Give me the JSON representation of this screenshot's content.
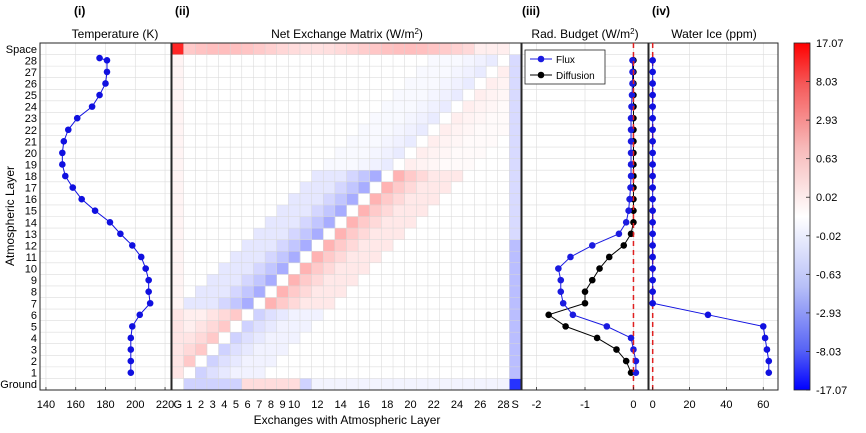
{
  "figure": {
    "ylabel": "Atmospheric Layer",
    "xlabel_matrix": "Exchanges with Atmospheric Layer",
    "layer_labels": [
      "Ground",
      "1",
      "2",
      "3",
      "4",
      "5",
      "6",
      "7",
      "8",
      "9",
      "10",
      "11",
      "12",
      "13",
      "14",
      "15",
      "16",
      "17",
      "18",
      "19",
      "20",
      "21",
      "22",
      "23",
      "24",
      "25",
      "26",
      "27",
      "28",
      "Space"
    ],
    "accent_colors": {
      "series": "#1010e0",
      "flux": "#1a1ae0",
      "diffusion": "#000000",
      "zero_line": "#e02020"
    }
  },
  "chart_data": [
    {
      "type": "line",
      "panel": "(i)",
      "title": "Temperature (K)",
      "xlim": [
        136,
        224
      ],
      "xticks": [
        140,
        160,
        180,
        200,
        220
      ],
      "layers": [
        1,
        2,
        3,
        4,
        5,
        6,
        7,
        8,
        9,
        10,
        11,
        12,
        13,
        14,
        15,
        16,
        17,
        18,
        19,
        20,
        21,
        22,
        23,
        24,
        25,
        26,
        27,
        28
      ],
      "series": [
        {
          "values": [
            197,
            197,
            197,
            197,
            198,
            203,
            210,
            209,
            209,
            207,
            204,
            198,
            190,
            183,
            173,
            164,
            158,
            153,
            151,
            151,
            152,
            155,
            161,
            171,
            176,
            180,
            181,
            181,
            176
          ]
        }
      ],
      "series_layers": [
        1,
        2,
        3,
        4,
        5,
        6,
        7,
        8,
        9,
        10,
        11,
        12,
        13,
        14,
        15,
        16,
        17,
        18,
        19,
        20,
        21,
        22,
        23,
        24,
        25,
        26,
        27,
        28,
        28.2
      ],
      "grid": true
    },
    {
      "type": "heatmap",
      "panel": "(ii)",
      "title": "Net Exchange Matrix (W/m",
      "title_sup": "2",
      "title_end": ")",
      "xticks": [
        "G",
        "1",
        "2",
        "3",
        "4",
        "5",
        "6",
        "7",
        "8",
        "9",
        "10",
        "12",
        "14",
        "16",
        "18",
        "20",
        "22",
        "24",
        "26",
        "28",
        "S"
      ],
      "color_scale": "symlog, blue (negative) - white - red (positive)"
    },
    {
      "type": "line",
      "panel": "(iii)",
      "title": "Rad. Budget (W/m",
      "title_sup": "2",
      "title_end": ")",
      "xlim": [
        -2.3,
        0.3
      ],
      "xticks": [
        -2,
        -1,
        0
      ],
      "legend": [
        "Flux",
        "Diffusion"
      ],
      "legend_position": "top-left",
      "series": [
        {
          "name": "Flux",
          "values": [
            0.05,
            0.05,
            0.0,
            -0.05,
            -0.55,
            -1.25,
            -1.45,
            -1.5,
            -1.5,
            -1.55,
            -1.3,
            -0.85,
            -0.3,
            -0.15,
            -0.1,
            -0.08,
            -0.06,
            -0.05,
            -0.05,
            -0.05,
            -0.05,
            -0.05,
            -0.05,
            -0.04,
            -0.03,
            -0.02,
            -0.02,
            -0.02
          ]
        },
        {
          "name": "Diffusion",
          "values": [
            -0.05,
            -0.15,
            -0.35,
            -0.75,
            -1.4,
            -1.75,
            -1.0,
            -1.0,
            -0.85,
            -0.7,
            -0.5,
            -0.2,
            -0.05,
            0.0,
            0.0,
            0.0,
            0.0,
            0.0,
            0.0,
            0.0,
            0.0,
            0.0,
            0.0,
            0.0,
            0.0,
            0.0,
            0.0,
            0.0
          ]
        }
      ],
      "zero_line": 0,
      "grid": true
    },
    {
      "type": "line",
      "panel": "(iv)",
      "title": "Water Ice (ppm)",
      "xlim": [
        -2,
        68
      ],
      "xticks": [
        0,
        20,
        40,
        60
      ],
      "series": [
        {
          "values": [
            63,
            63,
            62,
            61,
            60,
            30,
            0,
            0,
            0,
            0,
            0,
            0,
            0,
            0,
            0,
            0,
            0,
            0,
            0,
            0,
            0,
            0,
            0,
            0,
            0,
            0,
            0,
            0
          ]
        }
      ],
      "zero_line": 0,
      "grid": true
    },
    {
      "type": "colorbar",
      "ticks": [
        "17.07",
        "8.03",
        "2.93",
        "0.63",
        "0.02",
        "-0.02",
        "-0.63",
        "-2.93",
        "-8.03",
        "-17.07"
      ]
    }
  ]
}
